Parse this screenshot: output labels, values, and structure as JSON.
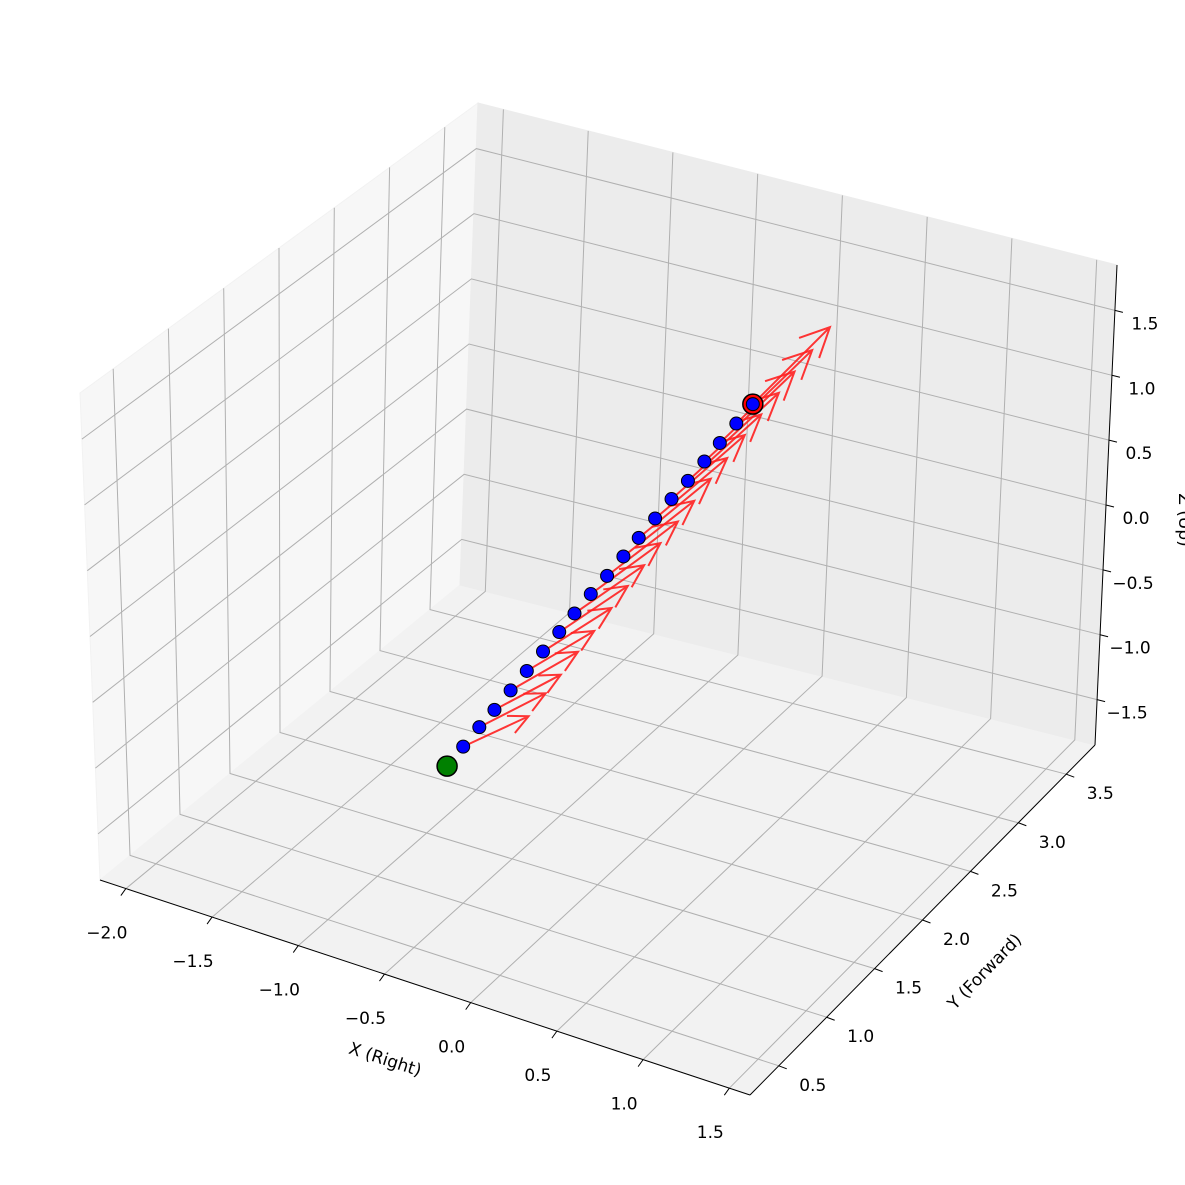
{
  "chart_data": {
    "type": "quiver3d",
    "xlabel": "X (Right)",
    "ylabel": "Y (Forward)",
    "zlabel": "Z (Up)",
    "xlim": [
      -2.15,
      1.62
    ],
    "ylim": [
      0.2,
      3.8
    ],
    "zlim": [
      -1.85,
      1.85
    ],
    "xticks": [
      {
        "value": -2,
        "label": "−2.0"
      },
      {
        "value": -1.5,
        "label": "−1.5"
      },
      {
        "value": -1,
        "label": "−1.0"
      },
      {
        "value": -0.5,
        "label": "−0.5"
      },
      {
        "value": 0,
        "label": "0.0"
      },
      0.5,
      {
        "value": 1,
        "label": "1.0"
      },
      1.5
    ],
    "yticks": [
      0.5,
      {
        "value": 1,
        "label": "1.0"
      },
      1.5,
      {
        "value": 2,
        "label": "2.0"
      },
      2.5,
      {
        "value": 3,
        "label": "3.0"
      },
      3.5
    ],
    "zticks": [
      {
        "value": -1.5,
        "label": "−1.5"
      },
      {
        "value": -1,
        "label": "−1.0"
      },
      {
        "value": -0.5,
        "label": "−0.5"
      },
      {
        "value": 0,
        "label": "0.0"
      },
      0.5,
      {
        "value": 1,
        "label": "1.0"
      },
      1.5
    ],
    "grid": true,
    "start": {
      "x": -0.3,
      "y": 0.5,
      "z": -0.38,
      "color": "#008000"
    },
    "end": {
      "x": -0.3,
      "y": 3.5,
      "z": 0.35,
      "color": "#ff0000"
    },
    "points": {
      "color": "#0000ff",
      "x": [
        -0.3,
        -0.3,
        -0.3,
        -0.3,
        -0.3,
        -0.3,
        -0.3,
        -0.3,
        -0.3,
        -0.3,
        -0.3,
        -0.3,
        -0.3,
        -0.3,
        -0.3,
        -0.3,
        -0.3,
        -0.3,
        -0.3
      ],
      "y": [
        0.66,
        0.82,
        0.97,
        1.13,
        1.29,
        1.45,
        1.61,
        1.76,
        1.92,
        2.08,
        2.24,
        2.39,
        2.55,
        2.71,
        2.87,
        3.03,
        3.18,
        3.34,
        3.5
      ],
      "z": [
        -0.34,
        -0.3,
        -0.27,
        -0.23,
        -0.19,
        -0.15,
        -0.11,
        -0.07,
        -0.03,
        0.0,
        0.04,
        0.08,
        0.12,
        0.16,
        0.19,
        0.23,
        0.27,
        0.31,
        0.35
      ]
    },
    "arrows": {
      "color": "#ff2020",
      "u": [
        0,
        0,
        0,
        0,
        0,
        0,
        0,
        0,
        0,
        0,
        0,
        0,
        0,
        0,
        0,
        0,
        0,
        0,
        0
      ],
      "v": [
        0.65,
        0.66,
        0.66,
        0.67,
        0.67,
        0.68,
        0.68,
        0.69,
        0.69,
        0.7,
        0.7,
        0.71,
        0.71,
        0.72,
        0.72,
        0.73,
        0.73,
        0.74,
        0.75
      ],
      "w": [
        -0.21,
        -0.19,
        -0.18,
        -0.16,
        -0.15,
        -0.13,
        -0.11,
        -0.1,
        -0.08,
        -0.06,
        -0.05,
        -0.03,
        -0.02,
        0.0,
        0.02,
        0.03,
        0.05,
        0.06,
        0.08
      ]
    }
  }
}
